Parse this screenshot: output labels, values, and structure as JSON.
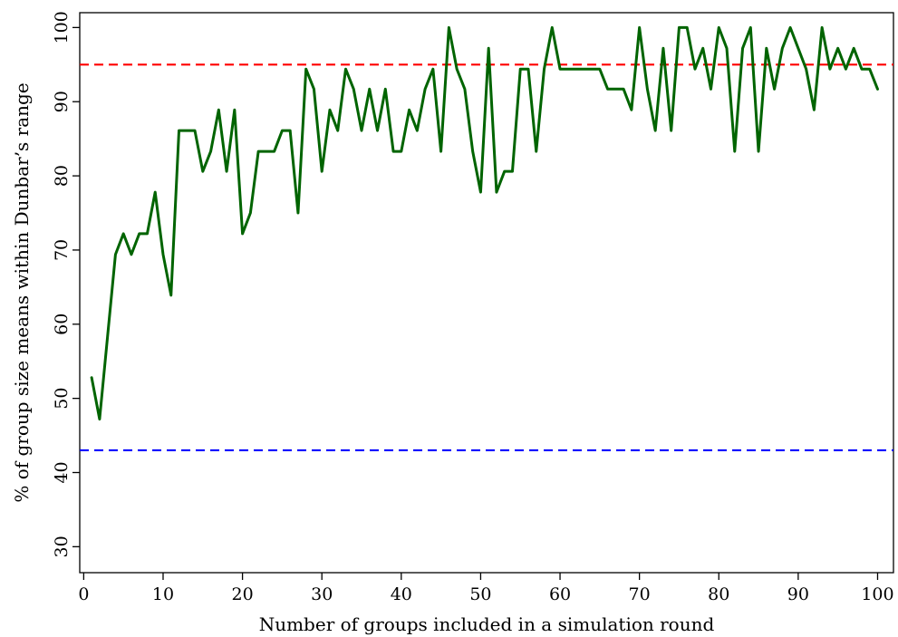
{
  "chart_data": {
    "type": "line",
    "title": "",
    "xlabel": "Number of groups included in a simulation round",
    "ylabel": "% of group size means within Dunbar’s range",
    "xlim": [
      -0.5,
      102
    ],
    "ylim": [
      26.5,
      102
    ],
    "xticks": [
      0,
      10,
      20,
      30,
      40,
      50,
      60,
      70,
      80,
      90,
      100
    ],
    "yticks": [
      30,
      40,
      50,
      60,
      70,
      80,
      90,
      100
    ],
    "grid": false,
    "legend": "none",
    "reference_lines": [
      {
        "y": 95,
        "color": "#ff0000",
        "style": "dashed"
      },
      {
        "y": 43,
        "color": "#0000ff",
        "style": "dashed"
      }
    ],
    "series": [
      {
        "color": "#006400",
        "x": [
          1,
          2,
          3,
          4,
          5,
          6,
          7,
          8,
          9,
          10,
          11,
          12,
          13,
          14,
          15,
          16,
          17,
          18,
          19,
          20,
          21,
          22,
          23,
          24,
          25,
          26,
          27,
          28,
          29,
          30,
          31,
          32,
          33,
          34,
          35,
          36,
          37,
          38,
          39,
          40,
          41,
          42,
          43,
          44,
          45,
          46,
          47,
          48,
          49,
          50,
          51,
          52,
          53,
          54,
          55,
          56,
          57,
          58,
          59,
          60,
          61,
          62,
          63,
          64,
          65,
          66,
          67,
          68,
          69,
          70,
          71,
          72,
          73,
          74,
          75,
          76,
          77,
          78,
          79,
          80,
          81,
          82,
          83,
          84,
          85,
          86,
          87,
          88,
          89,
          90,
          91,
          92,
          93,
          94,
          95,
          96,
          97,
          98,
          99,
          100
        ],
        "y": [
          52.8,
          47.2,
          58.3,
          69.4,
          72.2,
          69.4,
          72.2,
          72.2,
          77.8,
          69.4,
          63.9,
          86.1,
          86.1,
          86.1,
          80.6,
          83.3,
          88.9,
          80.6,
          88.9,
          72.2,
          75.0,
          83.3,
          83.3,
          83.3,
          86.1,
          86.1,
          75.0,
          94.4,
          91.7,
          80.6,
          88.9,
          86.1,
          94.4,
          91.7,
          86.1,
          91.7,
          86.1,
          91.7,
          83.3,
          83.3,
          88.9,
          86.1,
          91.7,
          94.4,
          83.3,
          100,
          94.4,
          91.7,
          83.3,
          77.8,
          97.2,
          77.8,
          80.6,
          80.6,
          94.4,
          94.4,
          83.3,
          94.4,
          100,
          94.4,
          94.4,
          94.4,
          94.4,
          94.4,
          94.4,
          91.7,
          91.7,
          91.7,
          88.9,
          100,
          91.7,
          86.1,
          97.2,
          86.1,
          100,
          100,
          94.4,
          97.2,
          91.7,
          100,
          97.2,
          83.3,
          97.2,
          100,
          83.3,
          97.2,
          91.7,
          97.2,
          100,
          97.2,
          94.4,
          88.9,
          100,
          94.4,
          97.2,
          94.4,
          97.2,
          94.4,
          94.4,
          91.7
        ]
      }
    ]
  }
}
